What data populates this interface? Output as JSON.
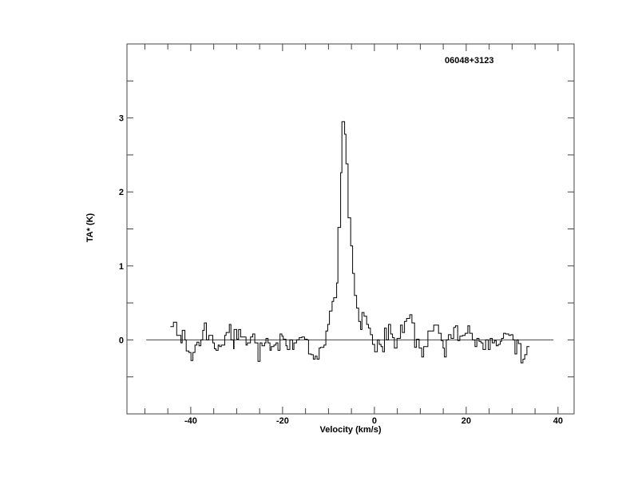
{
  "chart_data": {
    "type": "line",
    "style": "histogram-step",
    "title": "06048+3123",
    "xlabel": "Velocity (km/s)",
    "ylabel": "TA* (K)",
    "xlim": [
      -53.9,
      43.5
    ],
    "ylim": [
      -1,
      4
    ],
    "xticks_major": [
      -40,
      -20,
      0,
      20,
      40
    ],
    "xtick_labels": [
      "-40",
      "-20",
      "0",
      "20",
      "40"
    ],
    "xticks_minor_step": 5,
    "yticks_major": [
      0,
      1,
      2,
      3
    ],
    "ytick_labels": [
      "0",
      "1",
      "2",
      "3"
    ],
    "yticks_minor_step": 0.5,
    "grid": false,
    "baseline": {
      "y": 0,
      "x_range": [
        -49.7,
        39.0
      ]
    },
    "line_color": "#000000",
    "series": [
      {
        "x_end": 33.8,
        "steps": [
          [
            -44.46,
            0.18
          ],
          [
            -43.77,
            0.24
          ],
          [
            -43.07,
            0.06
          ],
          [
            -42.14,
            -0.04
          ],
          [
            -41.86,
            0.13
          ],
          [
            -41.28,
            0.0
          ],
          [
            -40.99,
            -0.15
          ],
          [
            -40.41,
            -0.17
          ],
          [
            -39.95,
            -0.28
          ],
          [
            -39.54,
            -0.17
          ],
          [
            -39.08,
            -0.07
          ],
          [
            -38.67,
            -0.03
          ],
          [
            -38.21,
            -0.08
          ],
          [
            -37.8,
            0.0
          ],
          [
            -37.4,
            0.13
          ],
          [
            -37.05,
            0.23
          ],
          [
            -36.59,
            0.0
          ],
          [
            -36.07,
            0.06
          ],
          [
            -35.2,
            -0.04
          ],
          [
            -34.85,
            -0.12
          ],
          [
            -34.5,
            -0.14
          ],
          [
            -34.03,
            -0.07
          ],
          [
            -33.75,
            -0.09
          ],
          [
            -33.34,
            -0.07
          ],
          [
            -32.59,
            0.06
          ],
          [
            -32.3,
            0.1
          ],
          [
            -31.61,
            0.21
          ],
          [
            -31.26,
            0.0
          ],
          [
            -30.68,
            -0.12
          ],
          [
            -30.57,
            0.14
          ],
          [
            -29.99,
            0.01
          ],
          [
            -29.59,
            0.14
          ],
          [
            -29.13,
            0.04
          ],
          [
            -27.97,
            -0.07
          ],
          [
            -27.68,
            -0.04
          ],
          [
            -26.99,
            0.04
          ],
          [
            -26.52,
            0.08
          ],
          [
            -26.06,
            -0.04
          ],
          [
            -25.36,
            -0.29
          ],
          [
            -24.9,
            -0.04
          ],
          [
            -24.49,
            -0.08
          ],
          [
            -23.91,
            -0.04
          ],
          [
            -23.62,
            0.02
          ],
          [
            -23.16,
            -0.04
          ],
          [
            -22.75,
            -0.14
          ],
          [
            -22.46,
            -0.09
          ],
          [
            -21.88,
            -0.07
          ],
          [
            -21.42,
            -0.04
          ],
          [
            -21.01,
            -0.14
          ],
          [
            -20.55,
            0.08
          ],
          [
            -20.14,
            0.05
          ],
          [
            -19.85,
            0.01
          ],
          [
            -19.27,
            -0.08
          ],
          [
            -18.98,
            -0.13
          ],
          [
            -18.41,
            0.0
          ],
          [
            -17.83,
            -0.13
          ],
          [
            -17.54,
            -0.04
          ],
          [
            -16.96,
            0.0
          ],
          [
            -16.38,
            0.03
          ],
          [
            -15.8,
            0.04
          ],
          [
            -15.22,
            0.01
          ],
          [
            -14.64,
            0.0
          ],
          [
            -14.35,
            -0.19
          ],
          [
            -13.77,
            -0.2
          ],
          [
            -13.3,
            -0.26
          ],
          [
            -12.9,
            -0.22
          ],
          [
            -12.49,
            -0.26
          ],
          [
            -12.03,
            -0.11
          ],
          [
            -11.74,
            -0.1
          ],
          [
            -10.99,
            -0.07
          ],
          [
            -10.58,
            0.12
          ],
          [
            -10.17,
            0.21
          ],
          [
            -9.8,
            0.39
          ],
          [
            -9.22,
            0.52
          ],
          [
            -8.87,
            0.57
          ],
          [
            -8.23,
            0.77
          ],
          [
            -7.94,
            1.52
          ],
          [
            -7.36,
            2.26
          ],
          [
            -7.07,
            2.95
          ],
          [
            -6.49,
            2.78
          ],
          [
            -6.2,
            2.38
          ],
          [
            -5.74,
            1.65
          ],
          [
            -5.16,
            1.27
          ],
          [
            -4.75,
            0.9
          ],
          [
            -4.35,
            0.6
          ],
          [
            -3.88,
            0.43
          ],
          [
            -3.42,
            0.25
          ],
          [
            -3.01,
            0.14
          ],
          [
            -2.72,
            0.37
          ],
          [
            -2.26,
            0.32
          ],
          [
            -1.68,
            0.21
          ],
          [
            -1.28,
            0.16
          ],
          [
            -0.87,
            0.07
          ],
          [
            -0.41,
            -0.06
          ],
          [
            0.06,
            -0.16
          ],
          [
            0.64,
            0.0
          ],
          [
            1.04,
            -0.06
          ],
          [
            1.45,
            -0.09
          ],
          [
            1.8,
            -0.16
          ],
          [
            2.2,
            0.16
          ],
          [
            2.61,
            0.0
          ],
          [
            3.07,
            0.21
          ],
          [
            3.53,
            0.08
          ],
          [
            3.94,
            0.03
          ],
          [
            4.35,
            -0.11
          ],
          [
            4.93,
            0.02
          ],
          [
            5.68,
            0.2
          ],
          [
            6.09,
            0.1
          ],
          [
            6.55,
            0.25
          ],
          [
            7.01,
            0.29
          ],
          [
            7.71,
            0.34
          ],
          [
            8.17,
            0.23
          ],
          [
            8.75,
            -0.1
          ],
          [
            9.16,
            0.01
          ],
          [
            9.74,
            -0.11
          ],
          [
            10.32,
            -0.23
          ],
          [
            10.73,
            -0.09
          ],
          [
            11.65,
            0.12
          ],
          [
            12.93,
            0.2
          ],
          [
            13.97,
            0.09
          ],
          [
            14.55,
            -0.01
          ],
          [
            14.96,
            -0.11
          ],
          [
            15.25,
            -0.23
          ],
          [
            15.65,
            0.0
          ],
          [
            16.12,
            0.07
          ],
          [
            16.7,
            0.02
          ],
          [
            17.28,
            0.17
          ],
          [
            17.68,
            0.19
          ],
          [
            18.14,
            -0.01
          ],
          [
            18.61,
            0.05
          ],
          [
            19.19,
            0.06
          ],
          [
            19.77,
            0.09
          ],
          [
            20.35,
            0.19
          ],
          [
            20.75,
            0.09
          ],
          [
            21.33,
            0.0
          ],
          [
            21.91,
            -0.09
          ],
          [
            22.32,
            0.02
          ],
          [
            22.78,
            -0.02
          ],
          [
            23.25,
            -0.04
          ],
          [
            23.65,
            -0.13
          ],
          [
            24.23,
            0.0
          ],
          [
            24.81,
            -0.13
          ],
          [
            25.22,
            0.02
          ],
          [
            25.68,
            -0.04
          ],
          [
            26.14,
            -0.01
          ],
          [
            26.55,
            -0.08
          ],
          [
            26.96,
            -0.06
          ],
          [
            27.42,
            -0.02
          ],
          [
            27.71,
            0.02
          ],
          [
            28.12,
            0.09
          ],
          [
            28.58,
            0.08
          ],
          [
            29.28,
            0.06
          ],
          [
            29.74,
            0.07
          ],
          [
            30.2,
            0.0
          ],
          [
            30.61,
            -0.19
          ],
          [
            31.01,
            0.0
          ],
          [
            31.36,
            -0.05
          ],
          [
            31.94,
            -0.31
          ],
          [
            32.35,
            -0.26
          ],
          [
            32.75,
            -0.2
          ],
          [
            33.22,
            -0.09
          ]
        ]
      }
    ]
  }
}
